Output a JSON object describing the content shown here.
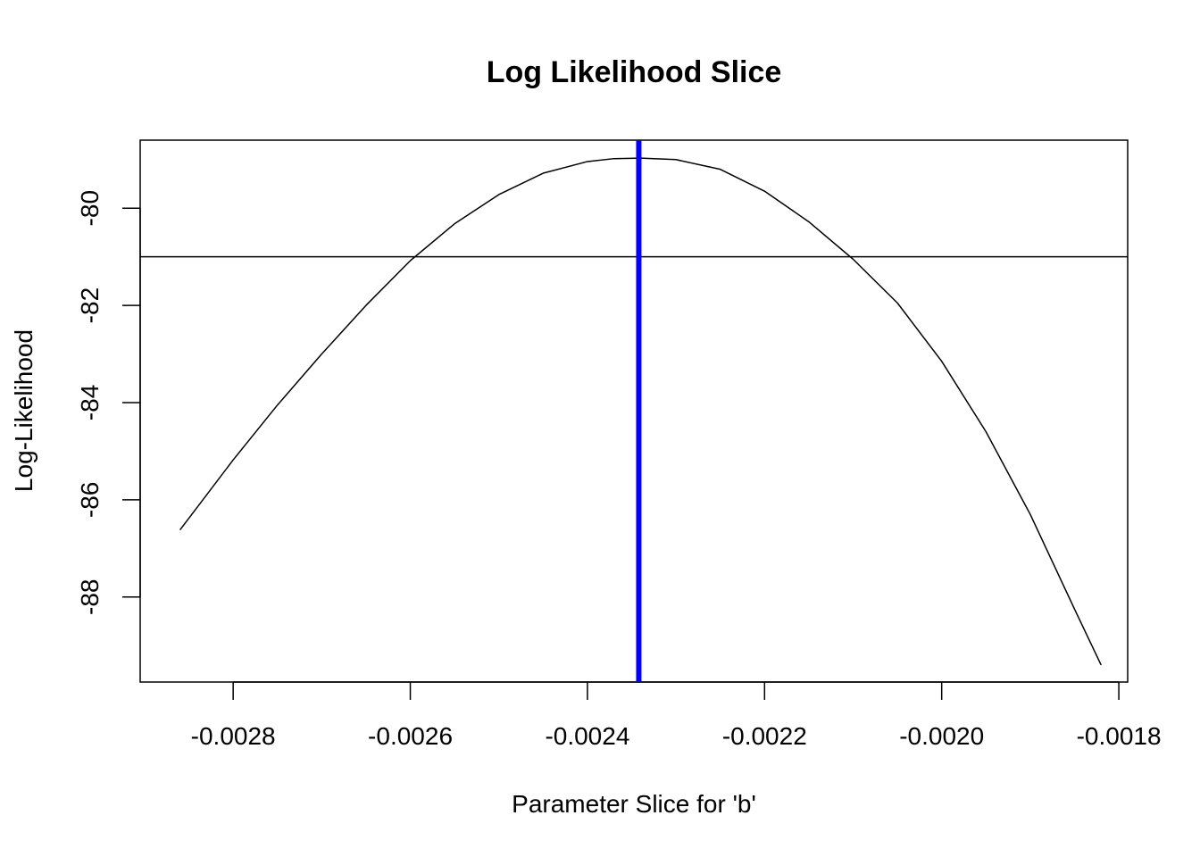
{
  "chart_data": {
    "type": "line",
    "title": "Log Likelihood Slice",
    "xlabel": "Parameter Slice for 'b'",
    "ylabel": "Log-Likelihood",
    "xlim": [
      -0.002905,
      -0.00179
    ],
    "ylim": [
      -89.75,
      -78.6
    ],
    "x_ticks": [
      -0.0028,
      -0.0026,
      -0.0024,
      -0.0022,
      -0.002,
      -0.0018
    ],
    "x_tick_labels": [
      "-0.0028",
      "-0.0026",
      "-0.0024",
      "-0.0022",
      "-0.0020",
      "-0.0018"
    ],
    "y_ticks": [
      -80,
      -82,
      -84,
      -86,
      -88
    ],
    "y_tick_labels": [
      "-80",
      "-82",
      "-84",
      "-86",
      "-88"
    ],
    "grid": false,
    "series": [
      {
        "color": "#000000",
        "x": [
          -0.00286,
          -0.0028,
          -0.00275,
          -0.0027,
          -0.00265,
          -0.0026,
          -0.00255,
          -0.0025,
          -0.00245,
          -0.0024,
          -0.00237,
          -0.00234,
          -0.0023,
          -0.00225,
          -0.0022,
          -0.00215,
          -0.0021,
          -0.00205,
          -0.002,
          -0.00195,
          -0.0019,
          -0.00185,
          -0.00182
        ],
        "y": [
          -86.62,
          -85.18,
          -84.05,
          -83.0,
          -82.0,
          -81.08,
          -80.32,
          -79.72,
          -79.28,
          -79.04,
          -78.98,
          -78.97,
          -79.0,
          -79.2,
          -79.65,
          -80.28,
          -81.05,
          -81.95,
          -83.15,
          -84.6,
          -86.3,
          -88.25,
          -89.4
        ]
      }
    ],
    "hlines": [
      {
        "y": -81.0,
        "color": "#000000"
      }
    ],
    "vlines": [
      {
        "x": -0.002342,
        "color": "#0000ff"
      }
    ]
  }
}
